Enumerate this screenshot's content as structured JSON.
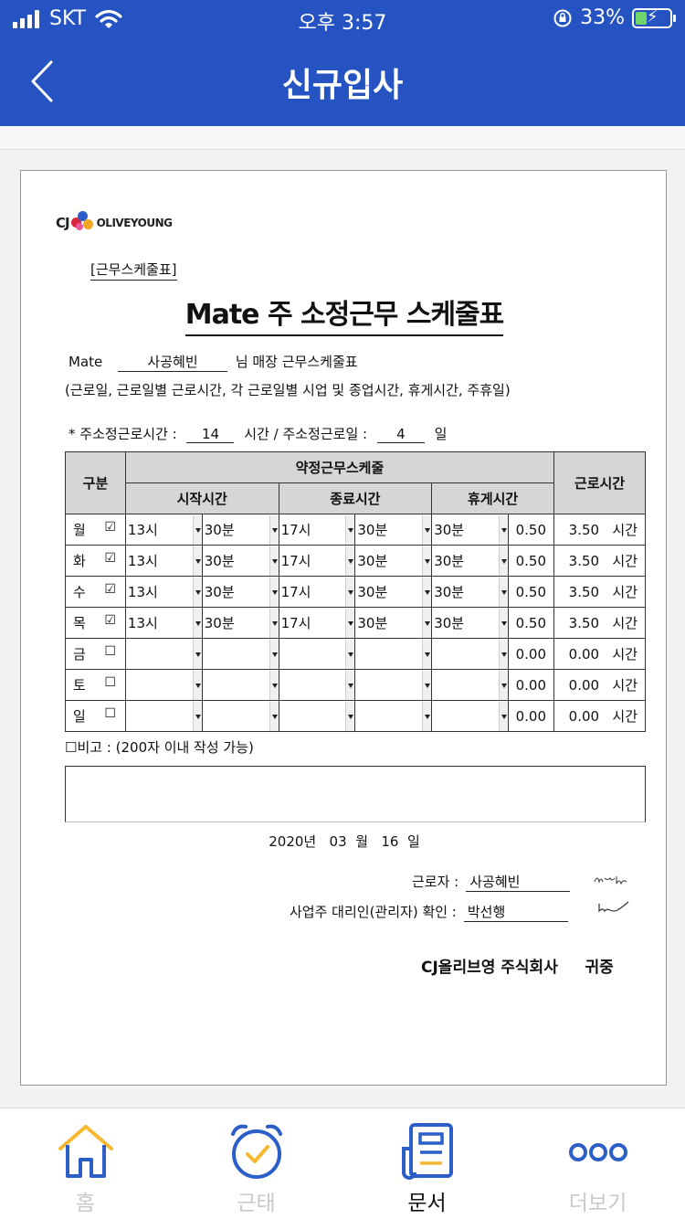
{
  "status_bar": {
    "carrier": "SKT",
    "time": "오후 3:57",
    "battery": "33%",
    "battery_level": 0.33
  },
  "header": {
    "title": "신규입사"
  },
  "document": {
    "logo": {
      "cj": "CJ",
      "brand": "OLIVEYOUNG"
    },
    "tag": "[근무스케줄표]",
    "title": "Mate 주 소정근무 스케줄표",
    "mate_prefix": "Mate",
    "employee_name": "사공혜빈",
    "mate_suffix": "님 매장 근무스케줄표",
    "description": "(근로일, 근로일별 근로시간, 각 근로일별 시업 및 종업시간, 휴게시간, 주휴일)",
    "weekly_hours_label": "*  주소정근로시간 :",
    "weekly_hours": "14",
    "weekly_days_label": "시간 / 주소정근로일 :",
    "weekly_days": "4",
    "weekly_days_unit": "일",
    "table": {
      "h_group": "구분",
      "h_schedule": "약정근무스케줄",
      "h_work_hours": "근로시간",
      "h_start": "시작시간",
      "h_end": "종료시간",
      "h_break": "휴게시간",
      "rows": [
        {
          "day": "월",
          "check": "☑",
          "sh": "13시",
          "sm": "30분",
          "eh": "17시",
          "em": "30분",
          "br": "30분",
          "brv": "0.50",
          "hours": "3.50",
          "unit": "시간"
        },
        {
          "day": "화",
          "check": "☑",
          "sh": "13시",
          "sm": "30분",
          "eh": "17시",
          "em": "30분",
          "br": "30분",
          "brv": "0.50",
          "hours": "3.50",
          "unit": "시간"
        },
        {
          "day": "수",
          "check": "☑",
          "sh": "13시",
          "sm": "30분",
          "eh": "17시",
          "em": "30분",
          "br": "30분",
          "brv": "0.50",
          "hours": "3.50",
          "unit": "시간"
        },
        {
          "day": "목",
          "check": "☑",
          "sh": "13시",
          "sm": "30분",
          "eh": "17시",
          "em": "30분",
          "br": "30분",
          "brv": "0.50",
          "hours": "3.50",
          "unit": "시간"
        },
        {
          "day": "금",
          "check": "☐",
          "sh": "",
          "sm": "",
          "eh": "",
          "em": "",
          "br": "",
          "brv": "0.00",
          "hours": "0.00",
          "unit": "시간"
        },
        {
          "day": "토",
          "check": "☐",
          "sh": "",
          "sm": "",
          "eh": "",
          "em": "",
          "br": "",
          "brv": "0.00",
          "hours": "0.00",
          "unit": "시간"
        },
        {
          "day": "일",
          "check": "☐",
          "sh": "",
          "sm": "",
          "eh": "",
          "em": "",
          "br": "",
          "brv": "0.00",
          "hours": "0.00",
          "unit": "시간"
        }
      ]
    },
    "note_label": "☐비고 : (200자 이내 작성 가능)",
    "note_value": "",
    "date": {
      "year": "2020",
      "year_unit": "년",
      "month": "03",
      "month_unit": "월",
      "day": "16",
      "day_unit": "일"
    },
    "worker_label": "근로자 :",
    "worker_name": "사공혜빈",
    "employer_label": "사업주 대리인(관리자) 확인 :",
    "employer_name": "박선행",
    "company": "CJ올리브영 주식회사",
    "honorific": "귀중"
  },
  "bottom_nav": [
    {
      "label": "홈",
      "icon": "home-icon",
      "active": false
    },
    {
      "label": "근태",
      "icon": "alarm-clock-icon",
      "active": false
    },
    {
      "label": "문서",
      "icon": "document-icon",
      "active": true
    },
    {
      "label": "더보기",
      "icon": "more-icon",
      "active": false
    }
  ],
  "colors": {
    "header_bg": "#2553c2",
    "icon_blue": "#2b5fc7",
    "icon_yellow": "#f5b82e",
    "table_header": "#d6d6d6"
  }
}
